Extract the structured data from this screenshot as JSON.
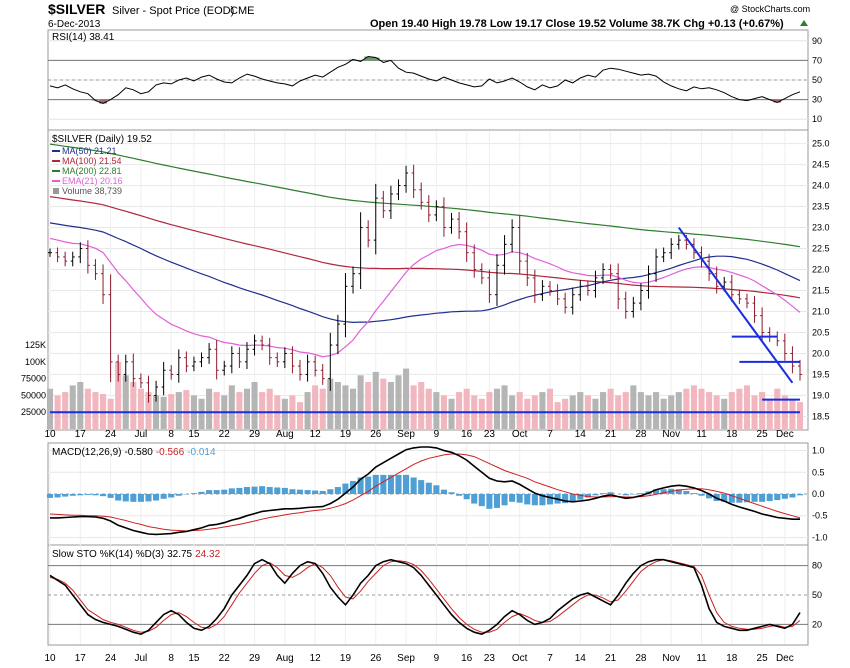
{
  "header": {
    "symbol": "$SILVER",
    "description": "Silver - Spot Price (EOD)",
    "exchange": "CME",
    "date": "6-Dec-2013",
    "watermark": "@ StockCharts.com",
    "ohlc_text": "Open 19.40  High 19.78  Low 19.17  Close 19.52  Volume 38.7K  Chg +0.13 (+0.67%)"
  },
  "colors": {
    "price_bar": "#000000",
    "down_bar": "#8b1a2b",
    "ma50": "#1f2f8f",
    "ma100": "#b0273c",
    "ma200": "#2e7d2e",
    "ema21": "#e060d8",
    "volume_up": "#b5b5b5",
    "volume_down": "#f2b6bf",
    "trendline": "#1a2ee0",
    "rsi_overbought_fill": "#6b9a6b",
    "rsi_oversold_fill": "#a06b6b",
    "macd_hist": "#4d9fd6",
    "signal_line": "#cc2222"
  },
  "chart_data": [
    {
      "type": "line",
      "panel": "rsi",
      "label": "RSI(14) 38.41",
      "ylim": [
        0,
        100
      ],
      "y_ticks": [
        90,
        70,
        50,
        30,
        10
      ],
      "levels": [
        70,
        30
      ],
      "values": [
        44,
        42,
        45,
        41,
        38,
        36,
        29,
        26,
        30,
        35,
        42,
        40,
        36,
        38,
        45,
        47,
        46,
        50,
        52,
        49,
        53,
        55,
        51,
        48,
        47,
        52,
        56,
        54,
        51,
        49,
        47,
        46,
        44,
        49,
        52,
        55,
        53,
        58,
        63,
        66,
        71,
        69,
        74,
        73,
        68,
        70,
        62,
        58,
        57,
        54,
        51,
        49,
        53,
        50,
        47,
        45,
        43,
        44,
        51,
        47,
        49,
        52,
        48,
        43,
        40,
        45,
        42,
        44,
        50,
        47,
        52,
        55,
        53,
        60,
        62,
        61,
        59,
        57,
        55,
        56,
        54,
        48,
        44,
        41,
        39,
        43,
        41,
        42,
        40,
        37,
        33,
        30,
        29,
        31,
        33,
        30,
        27,
        31,
        35,
        38
      ]
    },
    {
      "type": "bar",
      "panel": "price",
      "label": "$SILVER (Daily) 19.52",
      "legend": [
        "MA(50) 21.21",
        "MA(100) 21.54",
        "MA(200) 22.81",
        "EMA(21) 20.16",
        "Volume 38,739"
      ],
      "ylim": [
        18.2,
        25.3
      ],
      "y_ticks": [
        25.0,
        24.5,
        24.0,
        23.5,
        23.0,
        22.5,
        22.0,
        21.5,
        21.0,
        20.5,
        20.0,
        19.5,
        19.0,
        18.5
      ],
      "volume_ticks": [
        "125K",
        "100K",
        "75000",
        "50000",
        "25000"
      ],
      "x_ticks": [
        "10",
        "17",
        "24",
        "Jul",
        "8",
        "15",
        "22",
        "29",
        "Aug",
        "12",
        "19",
        "26",
        "Sep",
        "9",
        "16",
        "23",
        "Oct",
        "7",
        "14",
        "21",
        "28",
        "Nov",
        "11",
        "18",
        "25",
        "Dec"
      ],
      "close": [
        22.4,
        22.3,
        22.2,
        22.3,
        22.5,
        22.1,
        21.9,
        21.4,
        19.8,
        19.5,
        19.8,
        19.4,
        19.3,
        19.0,
        19.2,
        19.6,
        19.5,
        19.9,
        19.7,
        19.8,
        19.9,
        20.1,
        19.6,
        19.7,
        20.0,
        19.8,
        20.1,
        20.3,
        20.2,
        19.9,
        19.8,
        20.0,
        19.7,
        19.5,
        19.8,
        19.6,
        19.4,
        20.2,
        20.7,
        21.6,
        21.9,
        23.0,
        22.7,
        23.7,
        23.4,
        23.8,
        24.0,
        24.3,
        23.9,
        23.6,
        23.3,
        23.5,
        23.0,
        23.2,
        22.9,
        22.4,
        22.0,
        21.8,
        21.4,
        22.1,
        22.6,
        23.0,
        22.2,
        21.8,
        21.4,
        21.6,
        21.5,
        21.3,
        21.1,
        21.4,
        21.6,
        21.5,
        21.8,
        22.0,
        21.9,
        21.3,
        21.0,
        21.2,
        21.5,
        21.9,
        22.3,
        22.4,
        22.6,
        22.7,
        22.6,
        22.4,
        22.2,
        21.9,
        21.6,
        21.7,
        21.4,
        21.3,
        21.2,
        20.9,
        20.5,
        20.4,
        20.3,
        20.0,
        19.7,
        19.5
      ],
      "volume": [
        60,
        50,
        55,
        65,
        70,
        60,
        55,
        52,
        45,
        100,
        80,
        70,
        60,
        55,
        50,
        48,
        52,
        55,
        58,
        50,
        45,
        60,
        55,
        50,
        65,
        55,
        60,
        70,
        55,
        60,
        50,
        45,
        50,
        40,
        55,
        65,
        60,
        75,
        70,
        65,
        60,
        80,
        70,
        85,
        75,
        70,
        80,
        90,
        65,
        70,
        60,
        55,
        50,
        45,
        55,
        60,
        50,
        45,
        55,
        60,
        65,
        50,
        55,
        45,
        50,
        55,
        60,
        40,
        45,
        50,
        55,
        50,
        45,
        55,
        60,
        50,
        55,
        65,
        55,
        50,
        55,
        45,
        50,
        55,
        60,
        65,
        60,
        55,
        50,
        45,
        55,
        60,
        65,
        50,
        55,
        45,
        60,
        50,
        45,
        40
      ],
      "trendlines": [
        {
          "from": [
            83,
            23.0
          ],
          "to": [
            98,
            19.3
          ]
        },
        {
          "from": [
            0,
            18.6
          ],
          "to": [
            99,
            18.6
          ]
        },
        {
          "from": [
            90,
            20.4
          ],
          "to": [
            96,
            20.4
          ]
        },
        {
          "from": [
            91,
            19.8
          ],
          "to": [
            99,
            19.8
          ]
        },
        {
          "from": [
            94,
            18.9
          ],
          "to": [
            99,
            18.9
          ]
        }
      ]
    },
    {
      "type": "line",
      "panel": "macd",
      "label_prefix": "MACD(12,26,9)",
      "label_macd": "-0.580",
      "label_signal": "-0.566",
      "label_hist": "-0.014",
      "ylim": [
        -1.15,
        1.15
      ],
      "y_ticks": [
        1.0,
        0.5,
        0.0,
        -0.5,
        -1.0
      ],
      "macd": [
        -0.55,
        -0.55,
        -0.54,
        -0.53,
        -0.52,
        -0.52,
        -0.53,
        -0.56,
        -0.62,
        -0.72,
        -0.78,
        -0.84,
        -0.88,
        -0.92,
        -0.93,
        -0.92,
        -0.91,
        -0.88,
        -0.86,
        -0.82,
        -0.78,
        -0.72,
        -0.7,
        -0.66,
        -0.6,
        -0.56,
        -0.5,
        -0.45,
        -0.4,
        -0.38,
        -0.36,
        -0.34,
        -0.34,
        -0.33,
        -0.31,
        -0.3,
        -0.29,
        -0.22,
        -0.12,
        0.02,
        0.16,
        0.34,
        0.46,
        0.62,
        0.72,
        0.82,
        0.92,
        1.02,
        1.06,
        1.08,
        1.08,
        1.06,
        1.0,
        0.96,
        0.88,
        0.78,
        0.64,
        0.5,
        0.36,
        0.3,
        0.28,
        0.3,
        0.22,
        0.12,
        0.02,
        -0.04,
        -0.08,
        -0.12,
        -0.16,
        -0.18,
        -0.16,
        -0.14,
        -0.1,
        -0.05,
        -0.02,
        -0.06,
        -0.1,
        -0.08,
        -0.04,
        0.02,
        0.1,
        0.14,
        0.18,
        0.2,
        0.18,
        0.14,
        0.08,
        0.0,
        -0.1,
        -0.16,
        -0.24,
        -0.3,
        -0.35,
        -0.4,
        -0.46,
        -0.5,
        -0.54,
        -0.56,
        -0.58,
        -0.58
      ],
      "signal": [
        -0.46,
        -0.47,
        -0.48,
        -0.49,
        -0.49,
        -0.5,
        -0.5,
        -0.51,
        -0.53,
        -0.57,
        -0.61,
        -0.66,
        -0.7,
        -0.75,
        -0.78,
        -0.81,
        -0.83,
        -0.84,
        -0.85,
        -0.84,
        -0.83,
        -0.81,
        -0.79,
        -0.76,
        -0.73,
        -0.7,
        -0.66,
        -0.62,
        -0.58,
        -0.54,
        -0.51,
        -0.48,
        -0.45,
        -0.43,
        -0.4,
        -0.38,
        -0.36,
        -0.33,
        -0.28,
        -0.22,
        -0.14,
        -0.04,
        0.06,
        0.18,
        0.28,
        0.38,
        0.48,
        0.58,
        0.68,
        0.76,
        0.82,
        0.86,
        0.9,
        0.92,
        0.92,
        0.9,
        0.86,
        0.78,
        0.7,
        0.62,
        0.54,
        0.48,
        0.42,
        0.36,
        0.28,
        0.22,
        0.16,
        0.1,
        0.05,
        0.0,
        -0.03,
        -0.06,
        -0.07,
        -0.07,
        -0.06,
        -0.06,
        -0.07,
        -0.07,
        -0.06,
        -0.04,
        -0.01,
        0.03,
        0.06,
        0.09,
        0.11,
        0.12,
        0.12,
        0.1,
        0.06,
        0.02,
        -0.04,
        -0.1,
        -0.16,
        -0.22,
        -0.28,
        -0.34,
        -0.4,
        -0.45,
        -0.5,
        -0.55
      ],
      "histogram": [
        -0.09,
        -0.08,
        -0.06,
        -0.04,
        -0.03,
        -0.02,
        -0.03,
        -0.05,
        -0.09,
        -0.15,
        -0.17,
        -0.18,
        -0.18,
        -0.17,
        -0.15,
        -0.11,
        -0.08,
        -0.04,
        -0.01,
        0.02,
        0.05,
        0.09,
        0.09,
        0.1,
        0.13,
        0.14,
        0.16,
        0.17,
        0.18,
        0.16,
        0.15,
        0.14,
        0.11,
        0.1,
        0.09,
        0.08,
        0.07,
        0.11,
        0.16,
        0.24,
        0.3,
        0.38,
        0.4,
        0.44,
        0.44,
        0.44,
        0.44,
        0.44,
        0.38,
        0.32,
        0.26,
        0.2,
        0.1,
        0.04,
        -0.04,
        -0.12,
        -0.22,
        -0.28,
        -0.34,
        -0.32,
        -0.26,
        -0.18,
        -0.2,
        -0.24,
        -0.26,
        -0.26,
        -0.24,
        -0.22,
        -0.21,
        -0.18,
        -0.13,
        -0.08,
        -0.03,
        0.02,
        0.04,
        0.0,
        -0.03,
        -0.01,
        0.02,
        0.06,
        0.11,
        0.11,
        0.12,
        0.11,
        0.07,
        0.02,
        -0.04,
        -0.1,
        -0.16,
        -0.18,
        -0.2,
        -0.2,
        -0.19,
        -0.18,
        -0.18,
        -0.16,
        -0.14,
        -0.11,
        -0.08,
        -0.03
      ]
    },
    {
      "type": "line",
      "panel": "sto",
      "label_prefix": "Slow STO %K(14) %D(3)",
      "label_k": "32.75",
      "label_d": "24.32",
      "ylim": [
        0,
        100
      ],
      "y_ticks": [
        80,
        50,
        20
      ],
      "levels": [
        80,
        50,
        20
      ],
      "k": [
        70,
        65,
        60,
        50,
        40,
        30,
        25,
        22,
        20,
        18,
        15,
        12,
        10,
        14,
        22,
        30,
        34,
        30,
        22,
        16,
        14,
        18,
        26,
        36,
        50,
        60,
        70,
        82,
        86,
        82,
        70,
        62,
        72,
        80,
        84,
        82,
        72,
        58,
        48,
        40,
        50,
        62,
        70,
        80,
        84,
        86,
        84,
        82,
        78,
        70,
        60,
        50,
        40,
        30,
        22,
        16,
        12,
        10,
        14,
        20,
        28,
        34,
        30,
        24,
        20,
        22,
        26,
        34,
        40,
        46,
        50,
        52,
        48,
        44,
        40,
        50,
        62,
        72,
        80,
        84,
        86,
        86,
        84,
        82,
        80,
        78,
        60,
        36,
        22,
        18,
        16,
        14,
        14,
        16,
        18,
        20,
        18,
        16,
        20,
        32
      ],
      "d": [
        68,
        66,
        62,
        55,
        45,
        35,
        30,
        25,
        22,
        20,
        17,
        14,
        12,
        13,
        17,
        24,
        30,
        32,
        28,
        22,
        17,
        16,
        20,
        28,
        40,
        52,
        62,
        72,
        80,
        83,
        78,
        70,
        68,
        72,
        78,
        82,
        78,
        70,
        58,
        48,
        46,
        54,
        64,
        72,
        80,
        84,
        85,
        84,
        81,
        75,
        66,
        56,
        46,
        36,
        27,
        20,
        15,
        12,
        12,
        15,
        22,
        28,
        31,
        28,
        24,
        22,
        23,
        28,
        34,
        40,
        46,
        50,
        50,
        47,
        43,
        45,
        54,
        64,
        74,
        80,
        84,
        86,
        85,
        83,
        81,
        79,
        70,
        50,
        32,
        22,
        18,
        16,
        15,
        15,
        16,
        18,
        19,
        17,
        18,
        24
      ]
    }
  ]
}
